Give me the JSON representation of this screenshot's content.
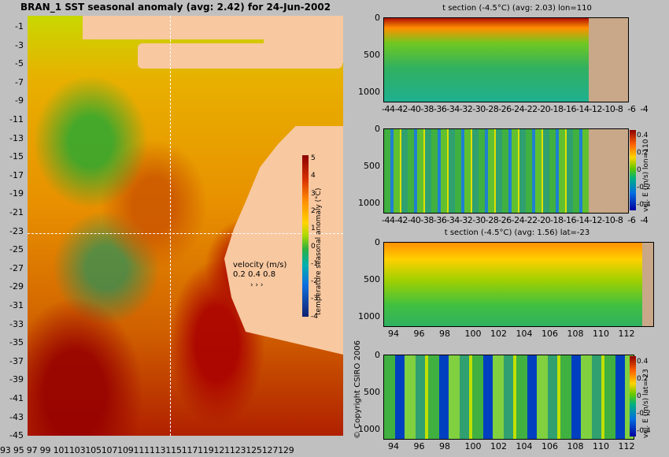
{
  "map": {
    "title": "BRAN_1 SST seasonal anomaly (avg: 2.42) for 24-Jun-2002",
    "lat_ticks": [
      "-1",
      "-3",
      "-5",
      "-7",
      "-9",
      "-11",
      "-13",
      "-15",
      "-17",
      "-19",
      "-21",
      "-23",
      "-25",
      "-27",
      "-29",
      "-31",
      "-33",
      "-35",
      "-37",
      "-39",
      "-41",
      "-43",
      "-45"
    ],
    "lon_ticks": [
      "93",
      "95",
      "97",
      "99",
      "101",
      "103",
      "105",
      "107",
      "109",
      "111",
      "113",
      "115",
      "117",
      "119",
      "121",
      "123",
      "125",
      "127",
      "129"
    ],
    "lon_ticks_text": "93 95 97 99 101103105107109111113115117119121123125127129",
    "colorbar": {
      "ticks": [
        "5",
        "4",
        "3",
        "2",
        "1",
        "0",
        "-1",
        "-2",
        "-3",
        "-4"
      ],
      "label": "temperature seasonal anomaly (°C)"
    },
    "velocity": {
      "title": "velocity (m/s)",
      "scale": "0.2 0.4 0.8",
      "arrows": "›   ›   ›"
    },
    "colors": {
      "land": "#f8c8a0",
      "background": "#c0c0c0"
    }
  },
  "panels": [
    {
      "title": "t section (-4.5°C) (avg: 2.03) lon=110",
      "y_ticks": [
        "0",
        "500",
        "1000"
      ],
      "x_ticks": "-44-42-40-38-36-34-32-30-28-26-24-22-20-18-16-14-12-10-8  -6  -4",
      "colorbar": null
    },
    {
      "title": "",
      "y_ticks": [
        "0",
        "500",
        "1000"
      ],
      "x_ticks": "-44-42-40-38-36-34-32-30-28-26-24-22-20-18-16-14-12-10-8  -6  -4",
      "colorbar": {
        "ticks": [
          "0.4",
          "0.2",
          "0",
          "-0.2",
          "-0.4"
        ],
        "label": "vel. E (m/s) lon=110"
      }
    },
    {
      "title": "t section (-4.5°C) (avg: 1.56) lat=-23",
      "y_ticks": [
        "0",
        "500",
        "1000"
      ],
      "x_ticks": [
        "94",
        "96",
        "98",
        "100",
        "102",
        "104",
        "106",
        "108",
        "110",
        "112"
      ],
      "colorbar": null
    },
    {
      "title": "",
      "y_ticks": [
        "0",
        "500",
        "1000"
      ],
      "x_ticks": [
        "94",
        "96",
        "98",
        "100",
        "102",
        "104",
        "106",
        "108",
        "110",
        "112"
      ],
      "colorbar": {
        "ticks": [
          "0.4",
          "0.2",
          "0",
          "-0.2",
          "-0.4"
        ],
        "label": "vel. E (m/s) lat=-23"
      }
    }
  ],
  "copyright": "© Copyright CSIRO 2006"
}
